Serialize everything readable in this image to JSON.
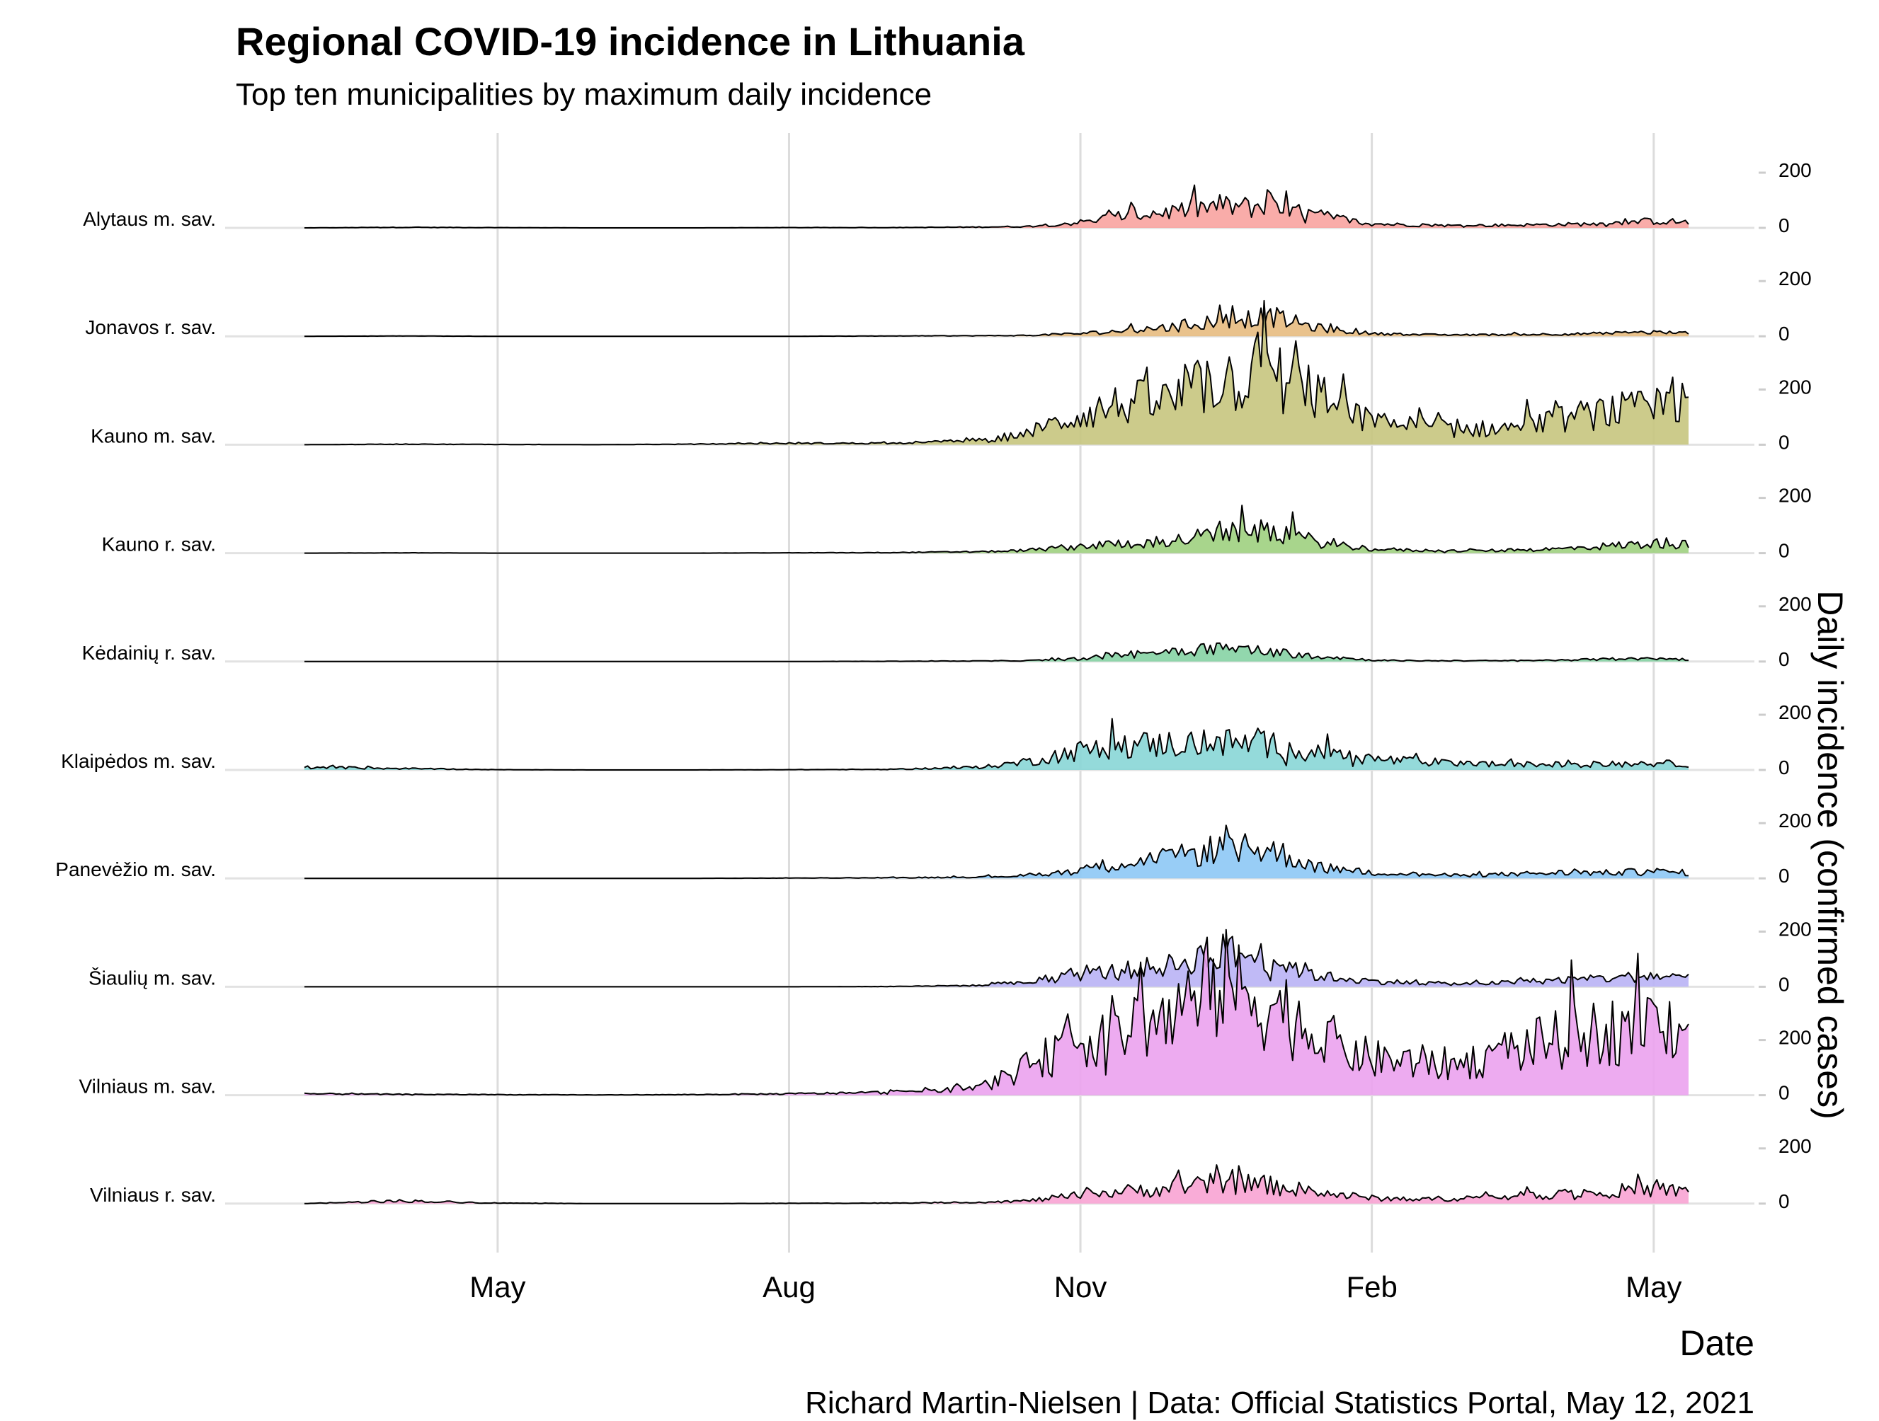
{
  "chart_data": {
    "type": "area",
    "variant": "ridgeline",
    "title": "Regional COVID-19 incidence in Lithuania",
    "subtitle": "Top ten municipalities by maximum daily incidence",
    "xlabel": "Date",
    "ylabel": "Daily incidence (confirmed cases)",
    "caption": "Richard Martin-Nielsen | Data: Official Statistics Portal, May 12, 2021",
    "x_range": [
      "2020-03-01",
      "2021-05-12"
    ],
    "x_ticks": [
      {
        "date": "2020-05-01",
        "label": "May"
      },
      {
        "date": "2020-08-01",
        "label": "Aug"
      },
      {
        "date": "2020-11-01",
        "label": "Nov"
      },
      {
        "date": "2021-02-01",
        "label": "Feb"
      },
      {
        "date": "2021-05-01",
        "label": "May"
      }
    ],
    "y_ticks": [
      "0",
      "200"
    ],
    "y_tick_values": [
      0,
      200
    ],
    "y_axis_position": "right",
    "x_grid": true,
    "legend": "none",
    "sample_dates": [
      "2020-03-01",
      "2020-04-01",
      "2020-05-01",
      "2020-06-01",
      "2020-07-01",
      "2020-08-01",
      "2020-09-01",
      "2020-10-01",
      "2020-10-15",
      "2020-11-01",
      "2020-11-15",
      "2020-12-01",
      "2020-12-15",
      "2021-01-01",
      "2021-01-15",
      "2021-02-01",
      "2021-02-15",
      "2021-03-01",
      "2021-03-15",
      "2021-04-01",
      "2021-04-15",
      "2021-05-01",
      "2021-05-12"
    ],
    "series": [
      {
        "name": "Alytaus m. sav.",
        "color": "#F8A3A0",
        "values": [
          0,
          2,
          1,
          0,
          0,
          1,
          1,
          3,
          5,
          20,
          45,
          60,
          80,
          70,
          45,
          15,
          10,
          8,
          10,
          12,
          15,
          25,
          20
        ]
      },
      {
        "name": "Jonavos r. sav.",
        "color": "#E7BB80",
        "values": [
          0,
          1,
          0,
          0,
          0,
          0,
          1,
          2,
          3,
          10,
          20,
          35,
          60,
          70,
          30,
          10,
          6,
          5,
          6,
          8,
          10,
          15,
          10
        ]
      },
      {
        "name": "Kauno m. sav.",
        "color": "#C6C57E",
        "values": [
          0,
          2,
          1,
          0,
          2,
          5,
          5,
          15,
          40,
          110,
          150,
          160,
          240,
          250,
          170,
          80,
          70,
          55,
          60,
          90,
          120,
          130,
          150
        ]
      },
      {
        "name": "Kauno r. sav.",
        "color": "#9FD07F",
        "values": [
          0,
          1,
          0,
          0,
          0,
          1,
          2,
          5,
          10,
          25,
          35,
          45,
          70,
          80,
          40,
          15,
          10,
          8,
          10,
          15,
          25,
          35,
          30
        ]
      },
      {
        "name": "Kėdainių r. sav.",
        "color": "#86D3A4",
        "values": [
          0,
          0,
          0,
          0,
          0,
          0,
          1,
          2,
          3,
          10,
          25,
          40,
          50,
          35,
          20,
          5,
          3,
          3,
          3,
          5,
          8,
          10,
          8
        ]
      },
      {
        "name": "Klaipėdos m. sav.",
        "color": "#88D6D6",
        "values": [
          10,
          5,
          1,
          0,
          0,
          1,
          2,
          10,
          30,
          70,
          90,
          95,
          100,
          90,
          60,
          40,
          30,
          25,
          20,
          20,
          20,
          25,
          20
        ]
      },
      {
        "name": "Panevėžio m. sav.",
        "color": "#8DC8F5",
        "values": [
          0,
          0,
          0,
          0,
          0,
          1,
          2,
          5,
          10,
          30,
          60,
          75,
          110,
          100,
          40,
          20,
          15,
          10,
          15,
          20,
          20,
          25,
          20
        ]
      },
      {
        "name": "Šiaulių m. sav.",
        "color": "#B9B3F5",
        "values": [
          0,
          0,
          0,
          0,
          0,
          0,
          1,
          5,
          15,
          45,
          60,
          80,
          130,
          100,
          40,
          20,
          15,
          10,
          15,
          25,
          30,
          40,
          30
        ]
      },
      {
        "name": "Vilniaus m. sav.",
        "color": "#EBA2EE",
        "values": [
          5,
          3,
          2,
          1,
          2,
          5,
          10,
          30,
          100,
          200,
          250,
          280,
          400,
          330,
          210,
          130,
          120,
          110,
          160,
          200,
          230,
          260,
          260
        ]
      },
      {
        "name": "Vilniaus r. sav.",
        "color": "#F8A3D3",
        "values": [
          0,
          10,
          2,
          0,
          0,
          1,
          2,
          5,
          10,
          30,
          45,
          55,
          75,
          65,
          40,
          20,
          15,
          20,
          25,
          35,
          45,
          50,
          45
        ]
      }
    ]
  }
}
